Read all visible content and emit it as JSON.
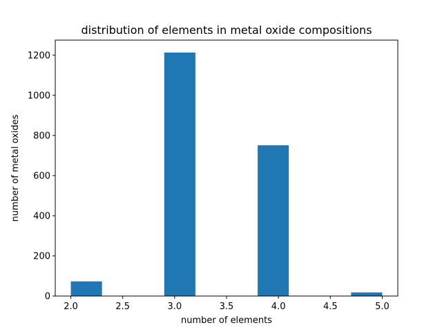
{
  "colors": {
    "bar": "#1f77b4",
    "axes": "#000000",
    "background": "#ffffff"
  },
  "chart_data": {
    "type": "bar",
    "title": "distribution of elements in metal oxide compositions",
    "xlabel": "number of elements",
    "ylabel": "number of metal oxides",
    "xlim": [
      1.85,
      5.15
    ],
    "ylim": [
      0,
      1275
    ],
    "grid": false,
    "legend": "none",
    "x_ticks": [
      2.0,
      2.5,
      3.0,
      3.5,
      4.0,
      4.5,
      5.0
    ],
    "x_tick_labels": [
      "2.0",
      "2.5",
      "3.0",
      "3.5",
      "4.0",
      "4.5",
      "5.0"
    ],
    "y_ticks": [
      0,
      200,
      400,
      600,
      800,
      1000,
      1200
    ],
    "y_tick_labels": [
      "0",
      "200",
      "400",
      "600",
      "800",
      "1000",
      "1200"
    ],
    "bins": [
      {
        "start": 2.0,
        "end": 2.3,
        "value": 73
      },
      {
        "start": 2.3,
        "end": 2.6,
        "value": 0
      },
      {
        "start": 2.6,
        "end": 2.9,
        "value": 0
      },
      {
        "start": 2.9,
        "end": 3.2,
        "value": 1213
      },
      {
        "start": 3.2,
        "end": 3.5,
        "value": 0
      },
      {
        "start": 3.5,
        "end": 3.8,
        "value": 0
      },
      {
        "start": 3.8,
        "end": 4.1,
        "value": 751
      },
      {
        "start": 4.1,
        "end": 4.4,
        "value": 0
      },
      {
        "start": 4.4,
        "end": 4.7,
        "value": 0
      },
      {
        "start": 4.7,
        "end": 5.0,
        "value": 18
      }
    ]
  }
}
